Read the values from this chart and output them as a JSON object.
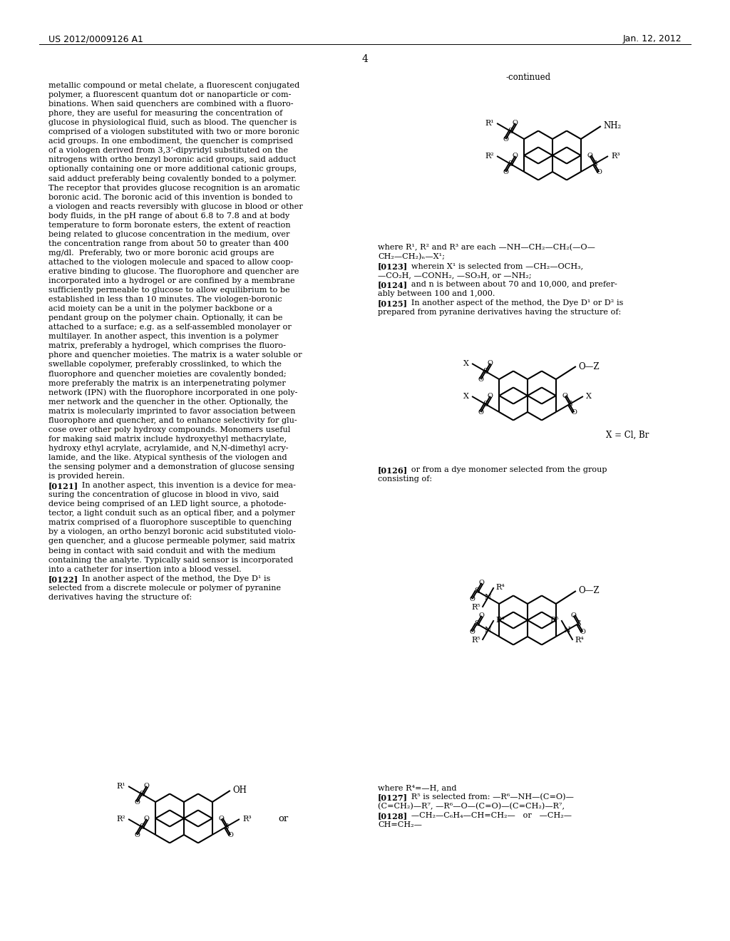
{
  "header_left": "US 2012/0009126 A1",
  "header_right": "Jan. 12, 2012",
  "page_number": "4",
  "bg_color": "#ffffff",
  "left_col_lines": [
    [
      "",
      "metallic compound or metal chelate, a fluorescent conjugated"
    ],
    [
      "",
      "polymer, a fluorescent quantum dot or nanoparticle or com-"
    ],
    [
      "",
      "binations. When said quenchers are combined with a fluoro-"
    ],
    [
      "",
      "phore, they are useful for measuring the concentration of"
    ],
    [
      "",
      "glucose in physiological fluid, such as blood. The quencher is"
    ],
    [
      "",
      "comprised of a viologen substituted with two or more boronic"
    ],
    [
      "",
      "acid groups. In one embodiment, the quencher is comprised"
    ],
    [
      "",
      "of a viologen derived from 3,3’-dipyridyl substituted on the"
    ],
    [
      "",
      "nitrogens with ortho benzyl boronic acid groups, said adduct"
    ],
    [
      "",
      "optionally containing one or more additional cationic groups,"
    ],
    [
      "",
      "said adduct preferably being covalently bonded to a polymer."
    ],
    [
      "",
      "The receptor that provides glucose recognition is an aromatic"
    ],
    [
      "",
      "boronic acid. The boronic acid of this invention is bonded to"
    ],
    [
      "",
      "a viologen and reacts reversibly with glucose in blood or other"
    ],
    [
      "",
      "body fluids, in the pH range of about 6.8 to 7.8 and at body"
    ],
    [
      "",
      "temperature to form boronate esters, the extent of reaction"
    ],
    [
      "",
      "being related to glucose concentration in the medium, over"
    ],
    [
      "",
      "the concentration range from about 50 to greater than 400"
    ],
    [
      "",
      "mg/dl.  Preferably, two or more boronic acid groups are"
    ],
    [
      "",
      "attached to the viologen molecule and spaced to allow coop-"
    ],
    [
      "",
      "erative binding to glucose. The fluorophore and quencher are"
    ],
    [
      "",
      "incorporated into a hydrogel or are confined by a membrane"
    ],
    [
      "",
      "sufficiently permeable to glucose to allow equilibrium to be"
    ],
    [
      "",
      "established in less than 10 minutes. The viologen-boronic"
    ],
    [
      "",
      "acid moiety can be a unit in the polymer backbone or a"
    ],
    [
      "",
      "pendant group on the polymer chain. Optionally, it can be"
    ],
    [
      "",
      "attached to a surface; e.g. as a self-assembled monolayer or"
    ],
    [
      "",
      "multilayer. In another aspect, this invention is a polymer"
    ],
    [
      "",
      "matrix, preferably a hydrogel, which comprises the fluoro-"
    ],
    [
      "",
      "phore and quencher moieties. The matrix is a water soluble or"
    ],
    [
      "",
      "swellable copolymer, preferably crosslinked, to which the"
    ],
    [
      "",
      "fluorophore and quencher moieties are covalently bonded;"
    ],
    [
      "",
      "more preferably the matrix is an interpenetrating polymer"
    ],
    [
      "",
      "network (IPN) with the fluorophore incorporated in one poly-"
    ],
    [
      "",
      "mer network and the quencher in the other. Optionally, the"
    ],
    [
      "",
      "matrix is molecularly imprinted to favor association between"
    ],
    [
      "",
      "fluorophore and quencher, and to enhance selectivity for glu-"
    ],
    [
      "",
      "cose over other poly hydroxy compounds. Monomers useful"
    ],
    [
      "",
      "for making said matrix include hydroxyethyl methacrylate,"
    ],
    [
      "",
      "hydroxy ethyl acrylate, acrylamide, and N,N-dimethyl acry-"
    ],
    [
      "",
      "lamide, and the like. Atypical synthesis of the viologen and"
    ],
    [
      "",
      "the sensing polymer and a demonstration of glucose sensing"
    ],
    [
      "",
      "is provided herein."
    ],
    [
      "[0121]",
      "   In another aspect, this invention is a device for mea-"
    ],
    [
      "",
      "suring the concentration of glucose in blood in vivo, said"
    ],
    [
      "",
      "device being comprised of an LED light source, a photode-"
    ],
    [
      "",
      "tector, a light conduit such as an optical fiber, and a polymer"
    ],
    [
      "",
      "matrix comprised of a fluorophore susceptible to quenching"
    ],
    [
      "",
      "by a viologen, an ortho benzyl boronic acid substituted violo-"
    ],
    [
      "",
      "gen quencher, and a glucose permeable polymer, said matrix"
    ],
    [
      "",
      "being in contact with said conduit and with the medium"
    ],
    [
      "",
      "containing the analyte. Typically said sensor is incorporated"
    ],
    [
      "",
      "into a catheter for insertion into a blood vessel."
    ],
    [
      "[0122]",
      "   In another aspect of the method, the Dye D¹ is"
    ],
    [
      "",
      "selected from a discrete molecule or polymer of pyranine"
    ],
    [
      "",
      "derivatives having the structure of:"
    ]
  ],
  "right_col_lines": [
    [
      "",
      "where R¹, R² and R³ are each —NH—CH₂—CH₂(—O—"
    ],
    [
      "",
      "CH₂—CH₂)ₙ—X¹;"
    ],
    [
      "[0123]",
      "   wherein X¹ is selected from —CH₂—OCH₃,"
    ],
    [
      "",
      "—CO₂H, —CONH₂, —SO₃H, or —NH₂;"
    ],
    [
      "[0124]",
      "   and n is between about 70 and 10,000, and prefer-"
    ],
    [
      "",
      "ably between 100 and 1,000."
    ],
    [
      "[0125]",
      "   In another aspect of the method, the Dye D¹ or D² is"
    ],
    [
      "",
      "prepared from pyranine derivatives having the structure of:"
    ]
  ],
  "right_col_lines2": [
    [
      "[0126]",
      "   or from a dye monomer selected from the group"
    ],
    [
      "",
      "consisting of:"
    ]
  ],
  "right_col_lines3": [
    [
      "",
      "where R⁴=—H, and"
    ],
    [
      "[0127]",
      "   R⁵ is selected from: —R⁶—NH—(C=O)—"
    ],
    [
      "",
      "(C=CH₂)—R⁷, —R⁶—O—(C=O)—(C=CH₂)—R⁷,"
    ],
    [
      "[0128]",
      "   —CH₂—C₆H₄—CH=CH₂—   or   —CH₂—"
    ],
    [
      "",
      "CH=CH₂—"
    ]
  ]
}
